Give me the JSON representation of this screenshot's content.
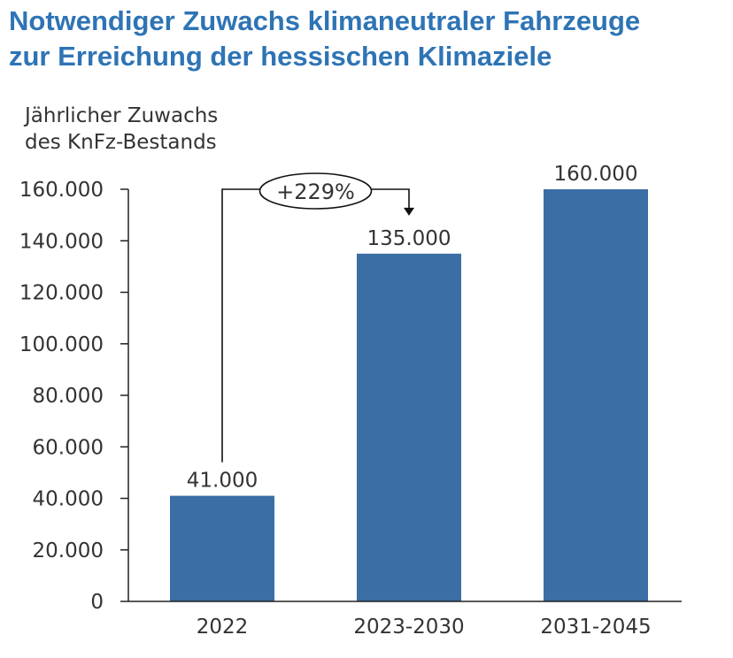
{
  "title_lines": [
    "Notwendiger Zuwachs klimaneutraler Fahrzeuge",
    "zur Erreichung der hessischen Klimaziele"
  ],
  "chart_data": {
    "type": "bar",
    "title": "Notwendiger Zuwachs klimaneutraler Fahrzeuge zur Erreichung der hessischen Klimaziele",
    "ylabel_lines": [
      "Jährlicher Zuwachs",
      "des KnFz-Bestands"
    ],
    "categories": [
      "2022",
      "2023-2030",
      "2031-2045"
    ],
    "values": [
      41000,
      135000,
      160000
    ],
    "value_labels": [
      "41.000",
      "135.000",
      "160.000"
    ],
    "ylim": [
      0,
      160000
    ],
    "yticks": [
      0,
      20000,
      40000,
      60000,
      80000,
      100000,
      120000,
      140000,
      160000
    ],
    "ytick_labels": [
      "0",
      "20.000",
      "40.000",
      "60.000",
      "80.000",
      "100.000",
      "120.000",
      "140.000",
      "160.000"
    ],
    "grid": false,
    "bar_color": "#3A6EA5",
    "annotation": {
      "text": "+229%",
      "from_category": "2022",
      "to_category": "2023-2030"
    }
  }
}
